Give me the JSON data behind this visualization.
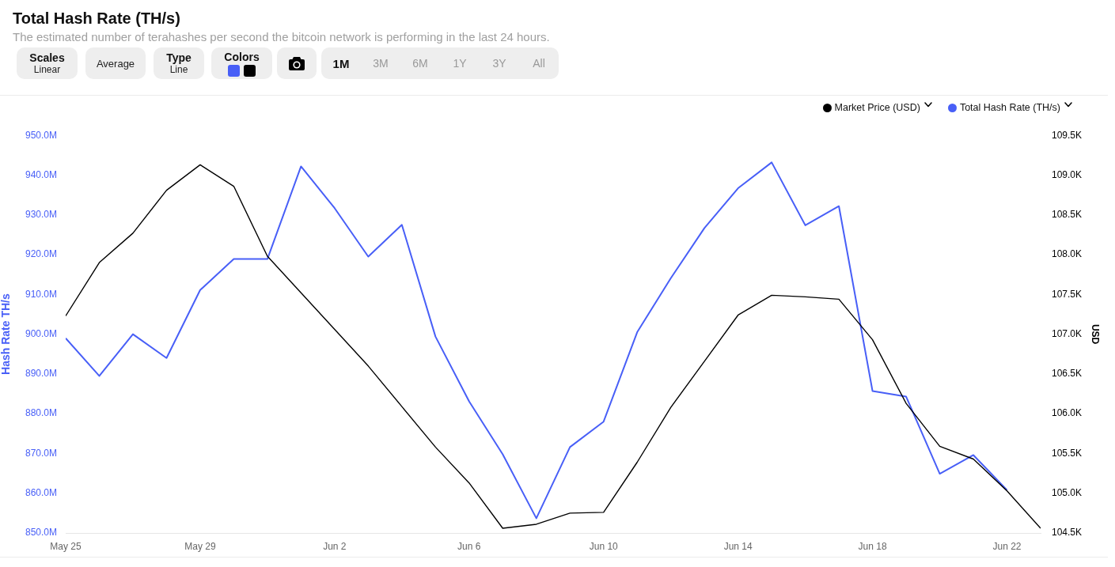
{
  "chart_data": {
    "type": "line",
    "title": "Total Hash Rate (TH/s)",
    "subtitle": "The estimated number of terahashes per second the bitcoin network is performing in the last 24 hours.",
    "annotations": [
      "Scales",
      "Linear",
      "Average",
      "Type",
      "Line",
      "Colors",
      "1M",
      "3M",
      "6M",
      "1Y",
      "3Y",
      "All"
    ],
    "ylabel": "Hash Rate TH/s",
    "y2label": "USD",
    "x": [
      "--05-25",
      "--05-26",
      "--05-27",
      "--05-28",
      "--05-29",
      "--05-30",
      "--05-31",
      "--06-01",
      "--06-02",
      "--06-03",
      "--06-04",
      "--06-05",
      "--06-06",
      "--06-07",
      "--06-08",
      "--06-09",
      "--06-10",
      "--06-11",
      "--06-12",
      "--06-13",
      "--06-14",
      "--06-15",
      "--06-16",
      "--06-17",
      "--06-18",
      "--06-19",
      "--06-20",
      "--06-21",
      "--06-22",
      "--06-23"
    ],
    "xlim": [
      "--05-25",
      "--06-23"
    ],
    "xticks": [
      {
        "value": "--05-25",
        "label": "May 25"
      },
      {
        "value": "--05-29",
        "label": "May 29"
      },
      {
        "value": "--06-02",
        "label": "Jun 2"
      },
      {
        "value": "--06-06",
        "label": "Jun 6"
      },
      {
        "value": "--06-10",
        "label": "Jun 10"
      },
      {
        "value": "--06-14",
        "label": "Jun 14"
      },
      {
        "value": "--06-18",
        "label": "Jun 18"
      },
      {
        "value": "--06-22",
        "label": "Jun 22"
      }
    ],
    "ylim": [
      850000000,
      950000000
    ],
    "yticks": [
      {
        "value": 850000000,
        "label": "850.0M"
      },
      {
        "value": 860000000,
        "label": "860.0M"
      },
      {
        "value": 870000000,
        "label": "870.0M"
      },
      {
        "value": 880000000,
        "label": "880.0M"
      },
      {
        "value": 890000000,
        "label": "890.0M"
      },
      {
        "value": 900000000,
        "label": "900.0M"
      },
      {
        "value": 910000000,
        "label": "910.0M"
      },
      {
        "value": 920000000,
        "label": "920.0M"
      },
      {
        "value": 930000000,
        "label": "930.0M"
      },
      {
        "value": 940000000,
        "label": "940.0M"
      },
      {
        "value": 950000000,
        "label": "950.0M"
      }
    ],
    "y2lim": [
      104500,
      109500
    ],
    "y2ticks": [
      {
        "value": 104500,
        "label": "104.5K"
      },
      {
        "value": 105000,
        "label": "105.0K"
      },
      {
        "value": 105500,
        "label": "105.5K"
      },
      {
        "value": 106000,
        "label": "106.0K"
      },
      {
        "value": 106500,
        "label": "106.5K"
      },
      {
        "value": 107000,
        "label": "107.0K"
      },
      {
        "value": 107500,
        "label": "107.5K"
      },
      {
        "value": 108000,
        "label": "108.0K"
      },
      {
        "value": 108500,
        "label": "108.5K"
      },
      {
        "value": 109000,
        "label": "109.0K"
      },
      {
        "value": 109500,
        "label": "109.5K"
      }
    ],
    "legend": "top right",
    "series": [
      {
        "name": "Market Price (USD)",
        "color": "#000000",
        "axis": "y2",
        "values": [
          107230,
          107900,
          108270,
          108810,
          109130,
          108860,
          107980,
          107520,
          107060,
          106600,
          106090,
          105580,
          105130,
          104560,
          104610,
          104750,
          104760,
          105390,
          106080,
          106660,
          107240,
          107490,
          107470,
          107440,
          106930,
          106130,
          105590,
          105430,
          105030,
          104560
        ]
      },
      {
        "name": "Total Hash Rate (TH/s)",
        "color": "#485ff7",
        "values": [
          899000000,
          889500000,
          900000000,
          894000000,
          911100000,
          918900000,
          918900000,
          942200000,
          931700000,
          919500000,
          927500000,
          899400000,
          883100000,
          869800000,
          853700000,
          871600000,
          878000000,
          900500000,
          914100000,
          926700000,
          936700000,
          943200000,
          927400000,
          932200000,
          885700000,
          884300000,
          864900000,
          869600000,
          860800000,
          null
        ]
      }
    ]
  }
}
